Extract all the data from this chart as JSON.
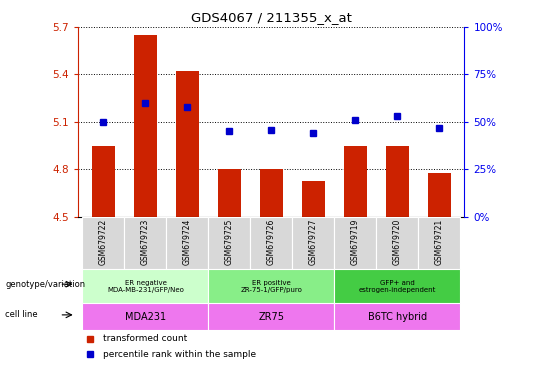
{
  "title": "GDS4067 / 211355_x_at",
  "samples": [
    "GSM679722",
    "GSM679723",
    "GSM679724",
    "GSM679725",
    "GSM679726",
    "GSM679727",
    "GSM679719",
    "GSM679720",
    "GSM679721"
  ],
  "bar_values": [
    4.95,
    5.65,
    5.42,
    4.8,
    4.8,
    4.73,
    4.95,
    4.95,
    4.78
  ],
  "percentile_values": [
    50,
    60,
    58,
    45,
    46,
    44,
    51,
    53,
    47
  ],
  "ylim_left": [
    4.5,
    5.7
  ],
  "ylim_right": [
    0,
    100
  ],
  "yticks_left": [
    4.5,
    4.8,
    5.1,
    5.4,
    5.7
  ],
  "yticks_right": [
    0,
    25,
    50,
    75,
    100
  ],
  "bar_color": "#cc2200",
  "dot_color": "#0000cc",
  "background_color": "#ffffff",
  "groups": [
    {
      "label": "ER negative\nMDA-MB-231/GFP/Neo",
      "cell_line": "MDA231",
      "start": 0,
      "end": 3,
      "genotype_color": "#ccffcc"
    },
    {
      "label": "ER positive\nZR-75-1/GFP/puro",
      "cell_line": "ZR75",
      "start": 3,
      "end": 6,
      "genotype_color": "#88ee88"
    },
    {
      "label": "GFP+ and\nestrogen-independent",
      "cell_line": "B6TC hybrid",
      "start": 6,
      "end": 9,
      "genotype_color": "#44cc44"
    }
  ],
  "cell_color": "#ee77ee",
  "left_label_color": "#cc2200",
  "right_label_color": "#0000ee",
  "xticklabel_bg": "#d8d8d8",
  "legend_items": [
    {
      "label": "transformed count",
      "color": "#cc2200"
    },
    {
      "label": "percentile rank within the sample",
      "color": "#0000cc"
    }
  ]
}
